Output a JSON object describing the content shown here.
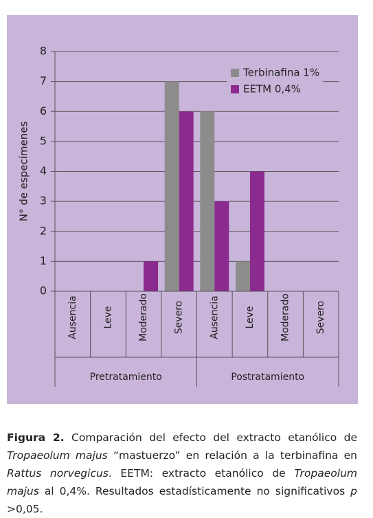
{
  "chart_data": {
    "type": "bar",
    "y_label": "N° de especímenes",
    "categories": [
      "Ausencia",
      "Leve",
      "Moderado",
      "Severo",
      "Ausencia",
      "Leve",
      "Moderado",
      "Severo"
    ],
    "groups": [
      "Pretratamiento",
      "Postratamiento"
    ],
    "series": [
      {
        "name": "Terbinafina 1%",
        "color": "#8c8c8c",
        "values": [
          0,
          0,
          0,
          7,
          6,
          1,
          0,
          0
        ]
      },
      {
        "name": "EETM 0,4%",
        "color": "#8b2b8f",
        "values": [
          0,
          0,
          1,
          6,
          3,
          4,
          0,
          0
        ]
      }
    ],
    "ylim": [
      0,
      8
    ],
    "yticks": [
      0,
      1,
      2,
      3,
      4,
      5,
      6,
      7,
      8
    ],
    "grid": true,
    "legend": "top-right"
  },
  "caption": {
    "label": "Figura 2.",
    "segments": [
      {
        "text": " Comparación del efecto del extracto etanólico de ",
        "style": "normal"
      },
      {
        "text": "Tropaeolum majus",
        "style": "italic"
      },
      {
        "text": " “mastuerzo” en relación a la terbinafina en ",
        "style": "normal"
      },
      {
        "text": "Rattus norvegicus",
        "style": "italic"
      },
      {
        "text": ". EETM: extracto etanólico de ",
        "style": "normal"
      },
      {
        "text": "Tropaeolum majus",
        "style": "italic"
      },
      {
        "text": " al 0,4%. Resultados estadísticamente no significativos ",
        "style": "normal"
      },
      {
        "text": "p",
        "style": "italic"
      },
      {
        "text": " >0,05.",
        "style": "normal"
      }
    ]
  }
}
